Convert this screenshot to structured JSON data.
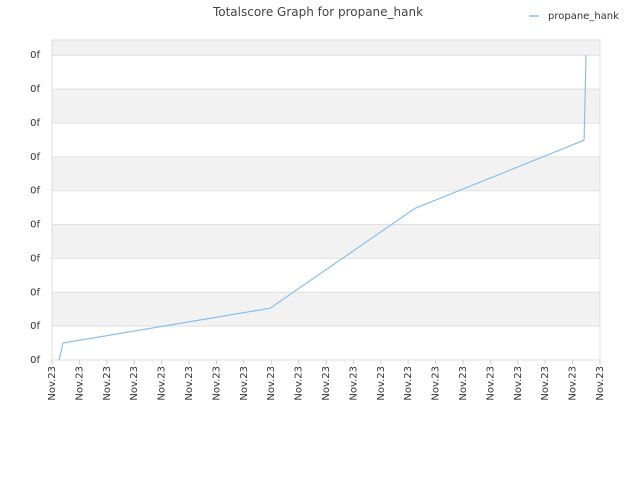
{
  "chart_data": {
    "type": "line",
    "title": "Totalscore Graph for propane_hank",
    "x": [
      0.26,
      0.4,
      7.96,
      13.25,
      19.42,
      19.49
    ],
    "series": [
      {
        "name": "propane_hank",
        "color": "#88c0ee",
        "values": [
          0,
          0.5,
          1.53,
          4.48,
          6.49,
          9.0
        ]
      }
    ],
    "xlim": [
      0,
      20
    ],
    "xticks": [
      {
        "value": 0,
        "label": "Nov.23"
      },
      {
        "value": 1,
        "label": "Nov.23"
      },
      {
        "value": 2,
        "label": "Nov.23"
      },
      {
        "value": 3,
        "label": "Nov.23"
      },
      {
        "value": 4,
        "label": "Nov.23"
      },
      {
        "value": 5,
        "label": "Nov.23"
      },
      {
        "value": 6,
        "label": "Nov.23"
      },
      {
        "value": 7,
        "label": "Nov.23"
      },
      {
        "value": 8,
        "label": "Nov.23"
      },
      {
        "value": 9,
        "label": "Nov.23"
      },
      {
        "value": 10,
        "label": "Nov.23"
      },
      {
        "value": 11,
        "label": "Nov.23"
      },
      {
        "value": 12,
        "label": "Nov.23"
      },
      {
        "value": 13,
        "label": "Nov.23"
      },
      {
        "value": 14,
        "label": "Nov.23"
      },
      {
        "value": 15,
        "label": "Nov.23"
      },
      {
        "value": 16,
        "label": "Nov.23"
      },
      {
        "value": 17,
        "label": "Nov.23"
      },
      {
        "value": 18,
        "label": "Nov.23"
      },
      {
        "value": 19,
        "label": "Nov.23"
      },
      {
        "value": 20,
        "label": "Nov.23"
      }
    ],
    "ylim": [
      0,
      9.45
    ],
    "yticks": [
      {
        "value": 0,
        "label": "0f"
      },
      {
        "value": 1,
        "label": "0f"
      },
      {
        "value": 2,
        "label": "0f"
      },
      {
        "value": 3,
        "label": "0f"
      },
      {
        "value": 4,
        "label": "0f"
      },
      {
        "value": 5,
        "label": "0f"
      },
      {
        "value": 6,
        "label": "0f"
      },
      {
        "value": 7,
        "label": "0f"
      },
      {
        "value": 8,
        "label": "0f"
      },
      {
        "value": 9,
        "label": "0f"
      }
    ],
    "grid": true,
    "legend": "top-right"
  }
}
